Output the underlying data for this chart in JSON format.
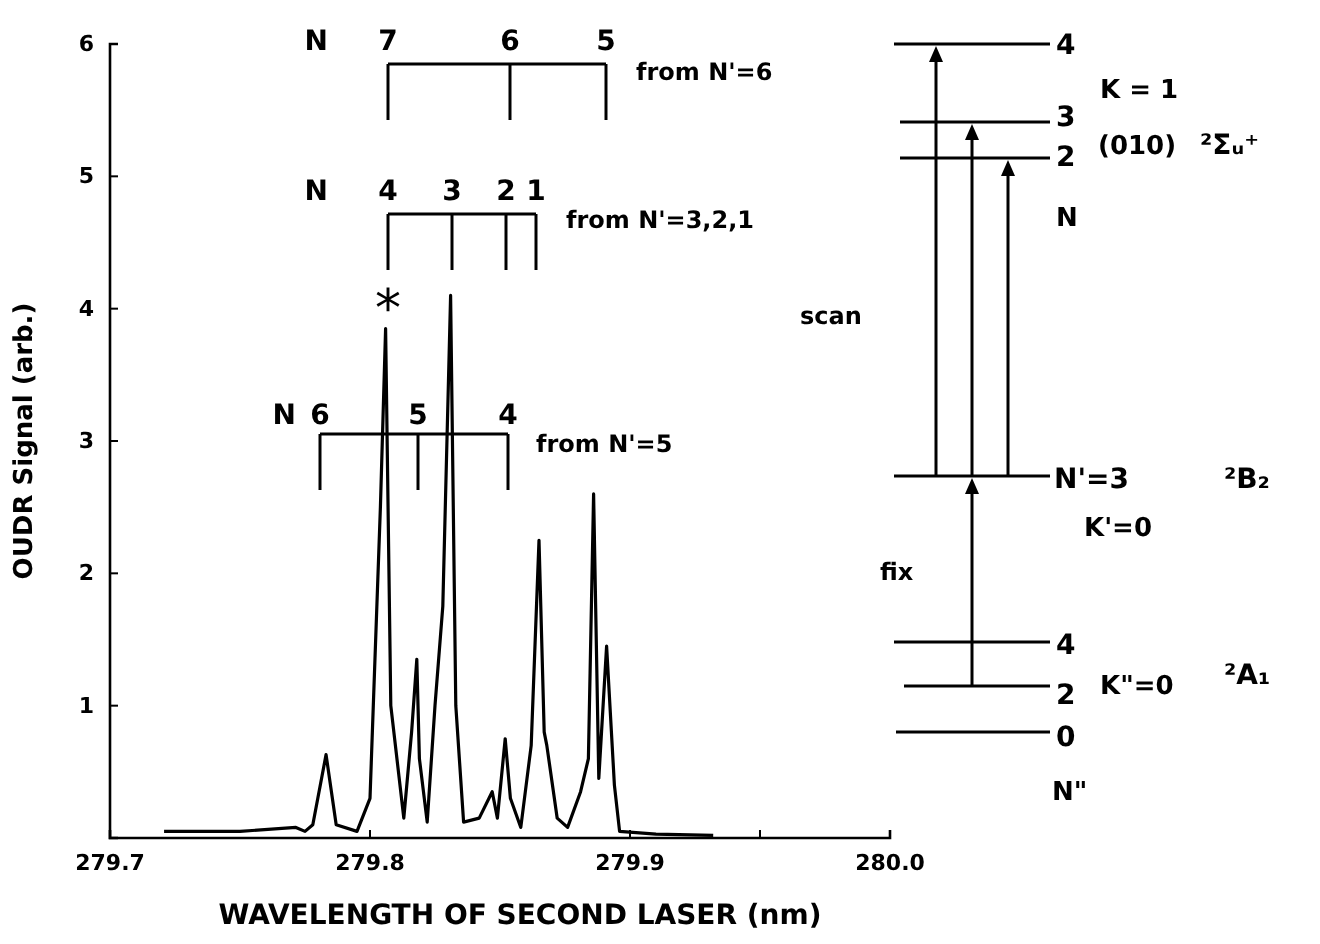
{
  "chart_data": {
    "type": "line",
    "xlabel": "WAVELENGTH OF SECOND LASER (nm)",
    "ylabel": "OUDR Signal (arb.)",
    "xlim": [
      279.7,
      280.0
    ],
    "ylim": [
      0,
      6
    ],
    "xticks": [
      279.7,
      279.8,
      279.9,
      {
        "value": 279.95,
        "label": null
      },
      {
        "value": 280.0,
        "label": "280.0"
      }
    ],
    "yticks": [
      {
        "value": 0,
        "label": null
      },
      1,
      2,
      3,
      4,
      5,
      6
    ],
    "grid": false,
    "marker": "none",
    "line_style": "solid",
    "series": [
      {
        "color": "#000000",
        "x": [
          279.7208,
          279.75,
          279.7715,
          279.775,
          279.778,
          279.7831,
          279.787,
          279.795,
          279.8,
          279.804,
          279.806,
          279.808,
          279.813,
          279.816,
          279.818,
          279.819,
          279.822,
          279.825,
          279.828,
          279.831,
          279.833,
          279.836,
          279.842,
          279.847,
          279.849,
          279.852,
          279.854,
          279.858,
          279.862,
          279.865,
          279.867,
          279.868,
          279.872,
          279.876,
          279.881,
          279.884,
          279.886,
          279.888,
          279.891,
          279.894,
          279.896,
          279.91,
          279.932
        ],
        "values": [
          0.05,
          0.05,
          0.08,
          0.05,
          0.1,
          0.63,
          0.1,
          0.05,
          0.3,
          2.5,
          3.85,
          1.0,
          0.15,
          0.8,
          1.35,
          0.6,
          0.12,
          1.0,
          1.75,
          4.1,
          1.0,
          0.12,
          0.15,
          0.35,
          0.15,
          0.75,
          0.3,
          0.08,
          0.7,
          2.25,
          0.8,
          0.7,
          0.15,
          0.08,
          0.35,
          0.6,
          2.6,
          0.45,
          1.45,
          0.4,
          0.05,
          0.03,
          0.02
        ]
      }
    ],
    "annotations": [
      "N",
      "7",
      "6",
      "5",
      "from N'=6",
      "N",
      "4",
      "3",
      "2",
      "1",
      "from N'=3,2,1",
      "N",
      "6",
      "5",
      "4",
      "from N'=5",
      "*",
      "4",
      "3",
      "2",
      "K = 1",
      "(010)",
      "²Σᵤ⁺",
      "N",
      "scan",
      "N'=3",
      "K'=0",
      "²B₂",
      "fix",
      "4",
      "2",
      "0",
      "K\"=0",
      "²A₁",
      "N\""
    ]
  }
}
